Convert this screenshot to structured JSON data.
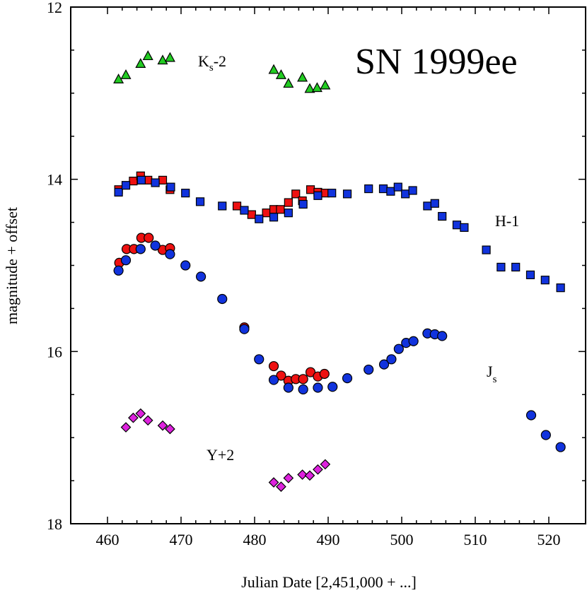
{
  "chart_data": {
    "type": "scatter",
    "title": "SN 1999ee",
    "xlabel": "Julian Date [2,451,000 + ...]",
    "ylabel": "magnitude + offset",
    "xlim": [
      455,
      525
    ],
    "ylim": [
      18,
      12
    ],
    "y_inverted": true,
    "x_ticks": [
      460,
      470,
      480,
      490,
      500,
      510,
      520
    ],
    "y_ticks": [
      12,
      14,
      16,
      18
    ],
    "series": [
      {
        "name": "Ks-2",
        "label_main": "K",
        "label_sub": "s",
        "label_tail": "-2",
        "marker": "triangle",
        "color": "#22cc22",
        "points": [
          [
            461.5,
            12.84
          ],
          [
            462.5,
            12.79
          ],
          [
            464.5,
            12.66
          ],
          [
            465.5,
            12.57
          ],
          [
            467.5,
            12.62
          ],
          [
            468.5,
            12.59
          ],
          [
            482.6,
            12.73
          ],
          [
            483.6,
            12.79
          ],
          [
            484.6,
            12.89
          ],
          [
            486.5,
            12.82
          ],
          [
            487.5,
            12.95
          ],
          [
            488.5,
            12.94
          ],
          [
            489.6,
            12.91
          ]
        ]
      },
      {
        "name": "H-1 (red)",
        "label_text": "H-1",
        "marker": "square",
        "color": "#ee1111",
        "points": [
          [
            461.5,
            14.12
          ],
          [
            463.5,
            14.02
          ],
          [
            464.5,
            13.96
          ],
          [
            465.5,
            14.01
          ],
          [
            467.5,
            14.01
          ],
          [
            468.5,
            14.12
          ],
          [
            477.6,
            14.31
          ],
          [
            479.6,
            14.41
          ],
          [
            481.6,
            14.39
          ],
          [
            482.6,
            14.35
          ],
          [
            483.5,
            14.35
          ],
          [
            484.6,
            14.27
          ],
          [
            485.6,
            14.17
          ],
          [
            486.5,
            14.25
          ],
          [
            487.6,
            14.12
          ],
          [
            488.6,
            14.15
          ],
          [
            489.6,
            14.16
          ]
        ]
      },
      {
        "name": "H-1 (blue)",
        "marker": "square",
        "color": "#1133dd",
        "points": [
          [
            461.5,
            14.15
          ],
          [
            462.5,
            14.07
          ],
          [
            464.6,
            14.01
          ],
          [
            466.5,
            14.04
          ],
          [
            468.6,
            14.09
          ],
          [
            470.6,
            14.16
          ],
          [
            472.6,
            14.26
          ],
          [
            475.6,
            14.31
          ],
          [
            478.6,
            14.36
          ],
          [
            480.6,
            14.46
          ],
          [
            482.6,
            14.44
          ],
          [
            484.6,
            14.39
          ],
          [
            486.6,
            14.29
          ],
          [
            488.6,
            14.19
          ],
          [
            490.5,
            14.16
          ],
          [
            492.6,
            14.17
          ],
          [
            495.5,
            14.11
          ],
          [
            497.5,
            14.11
          ],
          [
            498.5,
            14.14
          ],
          [
            499.5,
            14.09
          ],
          [
            500.5,
            14.17
          ],
          [
            501.5,
            14.13
          ],
          [
            503.5,
            14.31
          ],
          [
            504.5,
            14.28
          ],
          [
            505.5,
            14.43
          ],
          [
            507.5,
            14.53
          ],
          [
            508.5,
            14.56
          ],
          [
            511.5,
            14.82
          ],
          [
            513.5,
            15.02
          ],
          [
            515.5,
            15.02
          ],
          [
            517.5,
            15.11
          ],
          [
            519.5,
            15.17
          ],
          [
            521.6,
            15.26
          ]
        ]
      },
      {
        "name": "Js (red)",
        "label_main": "J",
        "label_sub": "s",
        "marker": "circle",
        "color": "#ee1111",
        "points": [
          [
            461.6,
            14.97
          ],
          [
            462.6,
            14.81
          ],
          [
            463.6,
            14.81
          ],
          [
            464.6,
            14.68
          ],
          [
            465.6,
            14.68
          ],
          [
            467.5,
            14.82
          ],
          [
            468.5,
            14.8
          ],
          [
            478.6,
            15.72
          ],
          [
            482.6,
            16.17
          ],
          [
            483.6,
            16.28
          ],
          [
            484.6,
            16.34
          ],
          [
            485.6,
            16.32
          ],
          [
            486.6,
            16.32
          ],
          [
            487.6,
            16.24
          ],
          [
            488.6,
            16.29
          ],
          [
            489.5,
            16.26
          ]
        ]
      },
      {
        "name": "Js (blue)",
        "marker": "circle",
        "color": "#1133dd",
        "points": [
          [
            461.5,
            15.06
          ],
          [
            462.5,
            14.94
          ],
          [
            464.5,
            14.81
          ],
          [
            466.5,
            14.77
          ],
          [
            468.5,
            14.87
          ],
          [
            470.6,
            15.0
          ],
          [
            472.7,
            15.13
          ],
          [
            475.6,
            15.39
          ],
          [
            478.6,
            15.74
          ],
          [
            480.6,
            16.09
          ],
          [
            482.6,
            16.33
          ],
          [
            484.6,
            16.42
          ],
          [
            486.6,
            16.44
          ],
          [
            488.6,
            16.42
          ],
          [
            490.6,
            16.41
          ],
          [
            492.6,
            16.31
          ],
          [
            495.5,
            16.21
          ],
          [
            497.6,
            16.15
          ],
          [
            498.6,
            16.09
          ],
          [
            499.6,
            15.97
          ],
          [
            500.6,
            15.9
          ],
          [
            501.6,
            15.88
          ],
          [
            503.5,
            15.79
          ],
          [
            504.5,
            15.8
          ],
          [
            505.5,
            15.82
          ],
          [
            517.6,
            16.74
          ],
          [
            519.6,
            16.97
          ],
          [
            521.6,
            17.11
          ]
        ]
      },
      {
        "name": "Y+2",
        "label_text": "Y+2",
        "marker": "diamond",
        "color": "#dd22dd",
        "points": [
          [
            462.5,
            16.88
          ],
          [
            463.5,
            16.77
          ],
          [
            464.5,
            16.72
          ],
          [
            465.5,
            16.8
          ],
          [
            467.5,
            16.86
          ],
          [
            468.5,
            16.9
          ],
          [
            482.6,
            17.52
          ],
          [
            483.6,
            17.57
          ],
          [
            484.6,
            17.47
          ],
          [
            486.5,
            17.43
          ],
          [
            487.5,
            17.44
          ],
          [
            488.6,
            17.37
          ],
          [
            489.6,
            17.31
          ]
        ]
      }
    ]
  }
}
